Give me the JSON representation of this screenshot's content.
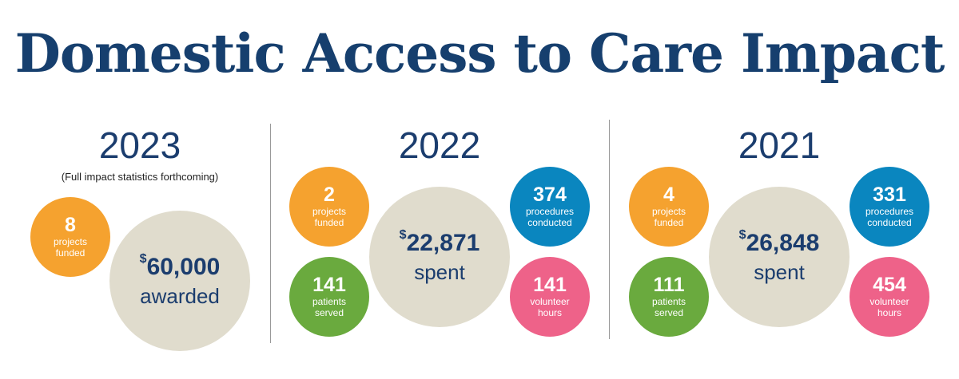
{
  "title": "Domestic Access to Care Impact",
  "columns": [
    {
      "year": "2023",
      "note": "(Full impact statistics forthcoming)",
      "main": {
        "prefix": "$",
        "value": "60,000",
        "label": "awarded"
      },
      "stats": [
        {
          "value": "8",
          "label": "projects funded",
          "color": "#f5a22f"
        }
      ]
    },
    {
      "year": "2022",
      "main": {
        "prefix": "$",
        "value": "22,871",
        "label": "spent"
      },
      "stats": [
        {
          "value": "2",
          "label": "projects funded",
          "color": "#f5a22f"
        },
        {
          "value": "374",
          "label": "procedures conducted",
          "color": "#0a86bf"
        },
        {
          "value": "141",
          "label": "patients served",
          "color": "#6aaa3e"
        },
        {
          "value": "141",
          "label": "volunteer hours",
          "color": "#ee6289"
        }
      ]
    },
    {
      "year": "2021",
      "main": {
        "prefix": "$",
        "value": "26,848",
        "label": "spent"
      },
      "stats": [
        {
          "value": "4",
          "label": "projects funded",
          "color": "#f5a22f"
        },
        {
          "value": "331",
          "label": "procedures conducted",
          "color": "#0a86bf"
        },
        {
          "value": "111",
          "label": "patients served",
          "color": "#6aaa3e"
        },
        {
          "value": "454",
          "label": "volunteer hours",
          "color": "#ee6289"
        }
      ]
    }
  ]
}
